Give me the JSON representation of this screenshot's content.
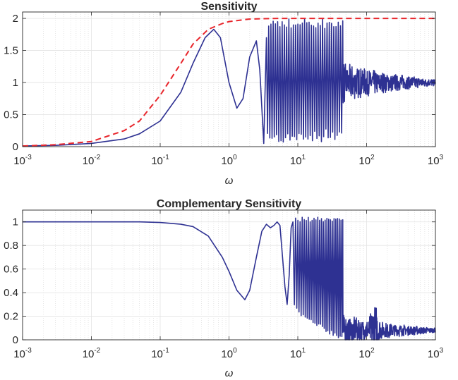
{
  "chart_data": [
    {
      "type": "line",
      "title": "Sensitivity",
      "xlabel": "ω",
      "ylabel": "",
      "xscale": "log",
      "xlim": [
        0.001,
        1000
      ],
      "ylim": [
        0,
        2.1
      ],
      "grid": true,
      "x_ticks": [
        "0.001",
        "0.01",
        "0.1",
        "1",
        "10",
        "100",
        "1000"
      ],
      "x_tick_labels": [
        {
          "base": "10",
          "exp": "-3"
        },
        {
          "base": "10",
          "exp": "-2"
        },
        {
          "base": "10",
          "exp": "-1"
        },
        {
          "base": "10",
          "exp": "0"
        },
        {
          "base": "10",
          "exp": "1"
        },
        {
          "base": "10",
          "exp": "2"
        },
        {
          "base": "10",
          "exp": "3"
        }
      ],
      "y_tick_labels": [
        "0",
        "0.5",
        "1",
        "1.5",
        "2"
      ],
      "y_ticks": [
        0,
        0.5,
        1,
        1.5,
        2
      ],
      "series": [
        {
          "style": "solid",
          "color": "#2e3192",
          "x": [
            0.001,
            0.003,
            0.01,
            0.03,
            0.05,
            0.1,
            0.2,
            0.3,
            0.45,
            0.6,
            0.75,
            1.0,
            1.3,
            1.6,
            2.0,
            2.5,
            2.8,
            3.2,
            3.5
          ],
          "y": [
            0.01,
            0.02,
            0.05,
            0.12,
            0.2,
            0.4,
            0.85,
            1.3,
            1.7,
            1.83,
            1.7,
            1.0,
            0.6,
            0.75,
            1.4,
            1.65,
            1.2,
            0.05,
            1.7
          ],
          "oscillation_segments": [
            {
              "x_from": 3.5,
              "x_to": 45,
              "center": 1.05,
              "amplitude": 1.0,
              "description": "dense oscillations between 0 and 2"
            },
            {
              "x_from": 45,
              "x_to": 1000,
              "center": 1.0,
              "amplitude_start": 0.35,
              "amplitude_end": 0.05,
              "description": "decaying noisy oscillation around 1"
            }
          ]
        },
        {
          "style": "dashed",
          "color": "#e8262c",
          "x": [
            0.001,
            0.003,
            0.01,
            0.03,
            0.05,
            0.1,
            0.2,
            0.3,
            0.5,
            0.8,
            1.0,
            2.0,
            5.0,
            10,
            100,
            1000
          ],
          "y": [
            0.01,
            0.03,
            0.08,
            0.25,
            0.4,
            0.8,
            1.3,
            1.6,
            1.83,
            1.92,
            1.95,
            1.99,
            2.0,
            2.0,
            2.0,
            2.0
          ]
        }
      ]
    },
    {
      "type": "line",
      "title": "Complementary Sensitivity",
      "xlabel": "ω",
      "ylabel": "",
      "xscale": "log",
      "xlim": [
        0.001,
        1000
      ],
      "ylim": [
        0,
        1.1
      ],
      "grid": true,
      "x_ticks": [
        "0.001",
        "0.01",
        "0.1",
        "1",
        "10",
        "100",
        "1000"
      ],
      "x_tick_labels": [
        {
          "base": "10",
          "exp": "-3"
        },
        {
          "base": "10",
          "exp": "-2"
        },
        {
          "base": "10",
          "exp": "-1"
        },
        {
          "base": "10",
          "exp": "0"
        },
        {
          "base": "10",
          "exp": "1"
        },
        {
          "base": "10",
          "exp": "2"
        },
        {
          "base": "10",
          "exp": "3"
        }
      ],
      "y_tick_labels": [
        "0",
        "0.2",
        "0.4",
        "0.6",
        "0.8",
        "1"
      ],
      "y_ticks": [
        0,
        0.2,
        0.4,
        0.6,
        0.8,
        1
      ],
      "series": [
        {
          "style": "solid",
          "color": "#2e3192",
          "x": [
            0.001,
            0.01,
            0.05,
            0.1,
            0.2,
            0.3,
            0.5,
            0.8,
            1.0,
            1.3,
            1.7,
            2.0,
            2.5,
            3.0,
            3.5,
            4.0,
            4.5,
            5.0,
            5.5,
            6.0,
            6.5,
            7.0,
            7.5,
            8.0,
            8.5
          ],
          "y": [
            1.0,
            1.0,
            1.0,
            0.995,
            0.98,
            0.96,
            0.88,
            0.7,
            0.58,
            0.42,
            0.34,
            0.42,
            0.7,
            0.92,
            0.98,
            0.95,
            0.97,
            1.0,
            0.97,
            0.7,
            0.45,
            0.3,
            0.55,
            0.95,
            1.0
          ],
          "oscillation_segments": [
            {
              "x_from": 8.5,
              "x_to": 45,
              "lower_start": 0.3,
              "lower_end": 0.0,
              "upper": 1.04,
              "description": "dense oscillations near 1 dipping increasingly low"
            },
            {
              "x_from": 45,
              "x_to": 1000,
              "center": 0.08,
              "amplitude_start": 0.15,
              "amplitude_end": 0.02,
              "peak_near": {
                "x": 130,
                "y": 0.37
              },
              "description": "noisy low-level oscillation decaying toward 0"
            }
          ]
        }
      ]
    }
  ]
}
